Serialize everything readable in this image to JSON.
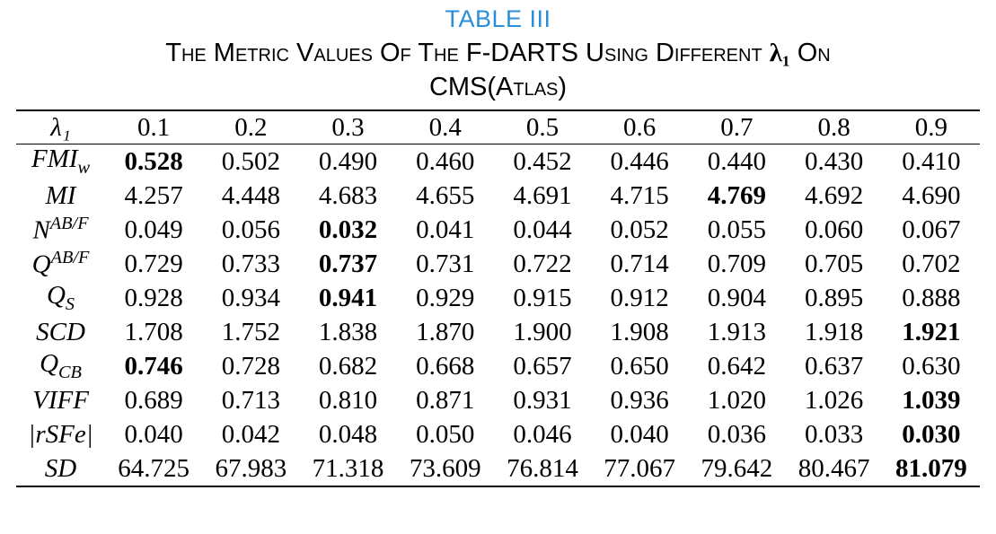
{
  "caption": {
    "label": "TABLE III",
    "title_before": "The Metric Values Of The F-DARTS Using Different ",
    "title_symbol": "λ₁",
    "title_after": " On",
    "title_line2": "CMS(Atlas)"
  },
  "table": {
    "header_symbol": "λ₁",
    "columns": [
      "0.1",
      "0.2",
      "0.3",
      "0.4",
      "0.5",
      "0.6",
      "0.7",
      "0.8",
      "0.9"
    ],
    "rows": [
      {
        "metric": "FMI_w",
        "values": [
          "0.528",
          "0.502",
          "0.490",
          "0.460",
          "0.452",
          "0.446",
          "0.440",
          "0.430",
          "0.410"
        ],
        "best": 0
      },
      {
        "metric": "MI",
        "values": [
          "4.257",
          "4.448",
          "4.683",
          "4.655",
          "4.691",
          "4.715",
          "4.769",
          "4.692",
          "4.690"
        ],
        "best": 6
      },
      {
        "metric": "N^AB/F",
        "values": [
          "0.049",
          "0.056",
          "0.032",
          "0.041",
          "0.044",
          "0.052",
          "0.055",
          "0.060",
          "0.067"
        ],
        "best": 2
      },
      {
        "metric": "Q^AB/F",
        "values": [
          "0.729",
          "0.733",
          "0.737",
          "0.731",
          "0.722",
          "0.714",
          "0.709",
          "0.705",
          "0.702"
        ],
        "best": 2
      },
      {
        "metric": "Q_S",
        "values": [
          "0.928",
          "0.934",
          "0.941",
          "0.929",
          "0.915",
          "0.912",
          "0.904",
          "0.895",
          "0.888"
        ],
        "best": 2
      },
      {
        "metric": "SCD",
        "values": [
          "1.708",
          "1.752",
          "1.838",
          "1.870",
          "1.900",
          "1.908",
          "1.913",
          "1.918",
          "1.921"
        ],
        "best": 8
      },
      {
        "metric": "Q_CB",
        "values": [
          "0.746",
          "0.728",
          "0.682",
          "0.668",
          "0.657",
          "0.650",
          "0.642",
          "0.637",
          "0.630"
        ],
        "best": 0
      },
      {
        "metric": "VIFF",
        "values": [
          "0.689",
          "0.713",
          "0.810",
          "0.871",
          "0.931",
          "0.936",
          "1.020",
          "1.026",
          "1.039"
        ],
        "best": 8
      },
      {
        "metric": "|rSFe|",
        "values": [
          "0.040",
          "0.042",
          "0.048",
          "0.050",
          "0.046",
          "0.040",
          "0.036",
          "0.033",
          "0.030"
        ],
        "best": 8
      },
      {
        "metric": "SD",
        "values": [
          "64.725",
          "67.983",
          "71.318",
          "73.609",
          "76.814",
          "77.067",
          "79.642",
          "80.467",
          "81.079"
        ],
        "best": 8
      }
    ]
  }
}
